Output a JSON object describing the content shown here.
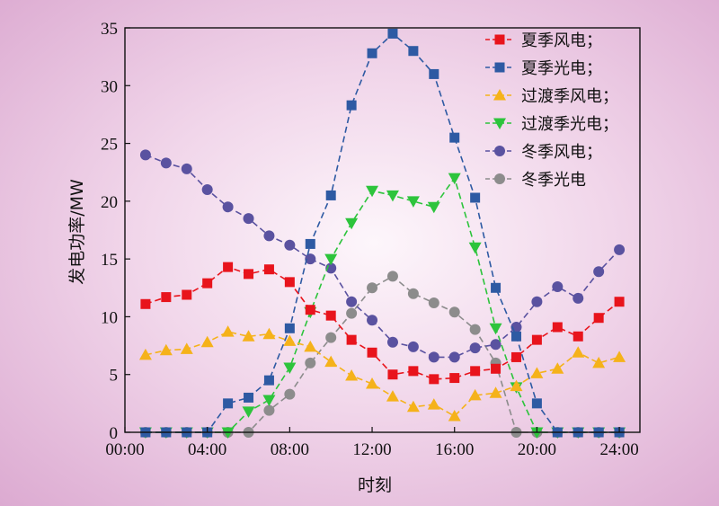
{
  "chart_data": {
    "type": "line",
    "xlabel": "时刻",
    "ylabel": "发电功率/MW",
    "x": [
      1,
      2,
      3,
      4,
      5,
      6,
      7,
      8,
      9,
      10,
      11,
      12,
      13,
      14,
      15,
      16,
      17,
      18,
      19,
      20,
      21,
      22,
      23,
      24
    ],
    "xlim": [
      0,
      25
    ],
    "ylim": [
      0,
      35
    ],
    "x_ticks": [
      0,
      4,
      8,
      12,
      16,
      20,
      24
    ],
    "x_tick_labels": [
      "00:00",
      "04:00",
      "08:00",
      "12:00",
      "16:00",
      "20:00",
      "24:00"
    ],
    "y_ticks": [
      0,
      5,
      10,
      15,
      20,
      25,
      30,
      35
    ],
    "y_tick_labels": [
      "0",
      "5",
      "10",
      "15",
      "20",
      "25",
      "30",
      "35"
    ],
    "legend_position": "top-right",
    "grid": false,
    "series": [
      {
        "name": "夏季风电；",
        "color": "#e8141c",
        "marker": "square",
        "values": [
          11.1,
          11.7,
          11.9,
          12.9,
          14.3,
          13.7,
          14.1,
          13.0,
          10.6,
          10.1,
          8.0,
          6.9,
          5.0,
          5.3,
          4.6,
          4.7,
          5.3,
          5.5,
          6.5,
          8.0,
          9.1,
          8.3,
          9.9,
          11.3
        ]
      },
      {
        "name": "夏季光电；",
        "color": "#2e5aa3",
        "marker": "square",
        "values": [
          0,
          0,
          0,
          0,
          2.5,
          3.0,
          4.5,
          9.0,
          16.3,
          20.5,
          28.3,
          32.8,
          34.5,
          33.0,
          31.0,
          25.5,
          20.3,
          12.5,
          8.3,
          2.5,
          0,
          0,
          0,
          0
        ]
      },
      {
        "name": "过渡季风电；",
        "color": "#f5b21a",
        "marker": "triangle-up",
        "values": [
          6.7,
          7.1,
          7.2,
          7.8,
          8.7,
          8.3,
          8.5,
          7.9,
          7.4,
          6.1,
          4.9,
          4.2,
          3.1,
          2.2,
          2.4,
          1.4,
          3.2,
          3.4,
          4.0,
          5.1,
          5.5,
          6.9,
          6.0,
          6.5
        ]
      },
      {
        "name": "过渡季光电；",
        "color": "#2dc43c",
        "marker": "triangle-down",
        "values": [
          0,
          0,
          0,
          0,
          0,
          1.8,
          2.8,
          5.6,
          10.4,
          15.0,
          18.1,
          20.9,
          20.5,
          20.0,
          19.5,
          22.0,
          16.0,
          9.0,
          3.9,
          0,
          0,
          0,
          0,
          0
        ]
      },
      {
        "name": "冬季风电；",
        "color": "#5a52a0",
        "marker": "circle",
        "values": [
          24.0,
          23.3,
          22.8,
          21.0,
          19.5,
          18.5,
          17.0,
          16.2,
          15.0,
          14.2,
          11.3,
          9.7,
          7.8,
          7.4,
          6.5,
          6.5,
          7.3,
          7.6,
          9.1,
          11.3,
          12.6,
          11.6,
          13.9,
          15.8
        ]
      },
      {
        "name": "冬季光电",
        "color": "#8c8c8c",
        "marker": "circle",
        "values": [
          0,
          0,
          0,
          0,
          0,
          0,
          1.9,
          3.3,
          6.0,
          8.2,
          10.3,
          12.5,
          13.5,
          12.0,
          11.2,
          10.4,
          8.9,
          6.0,
          0,
          0,
          0,
          0,
          0,
          0
        ]
      }
    ]
  }
}
